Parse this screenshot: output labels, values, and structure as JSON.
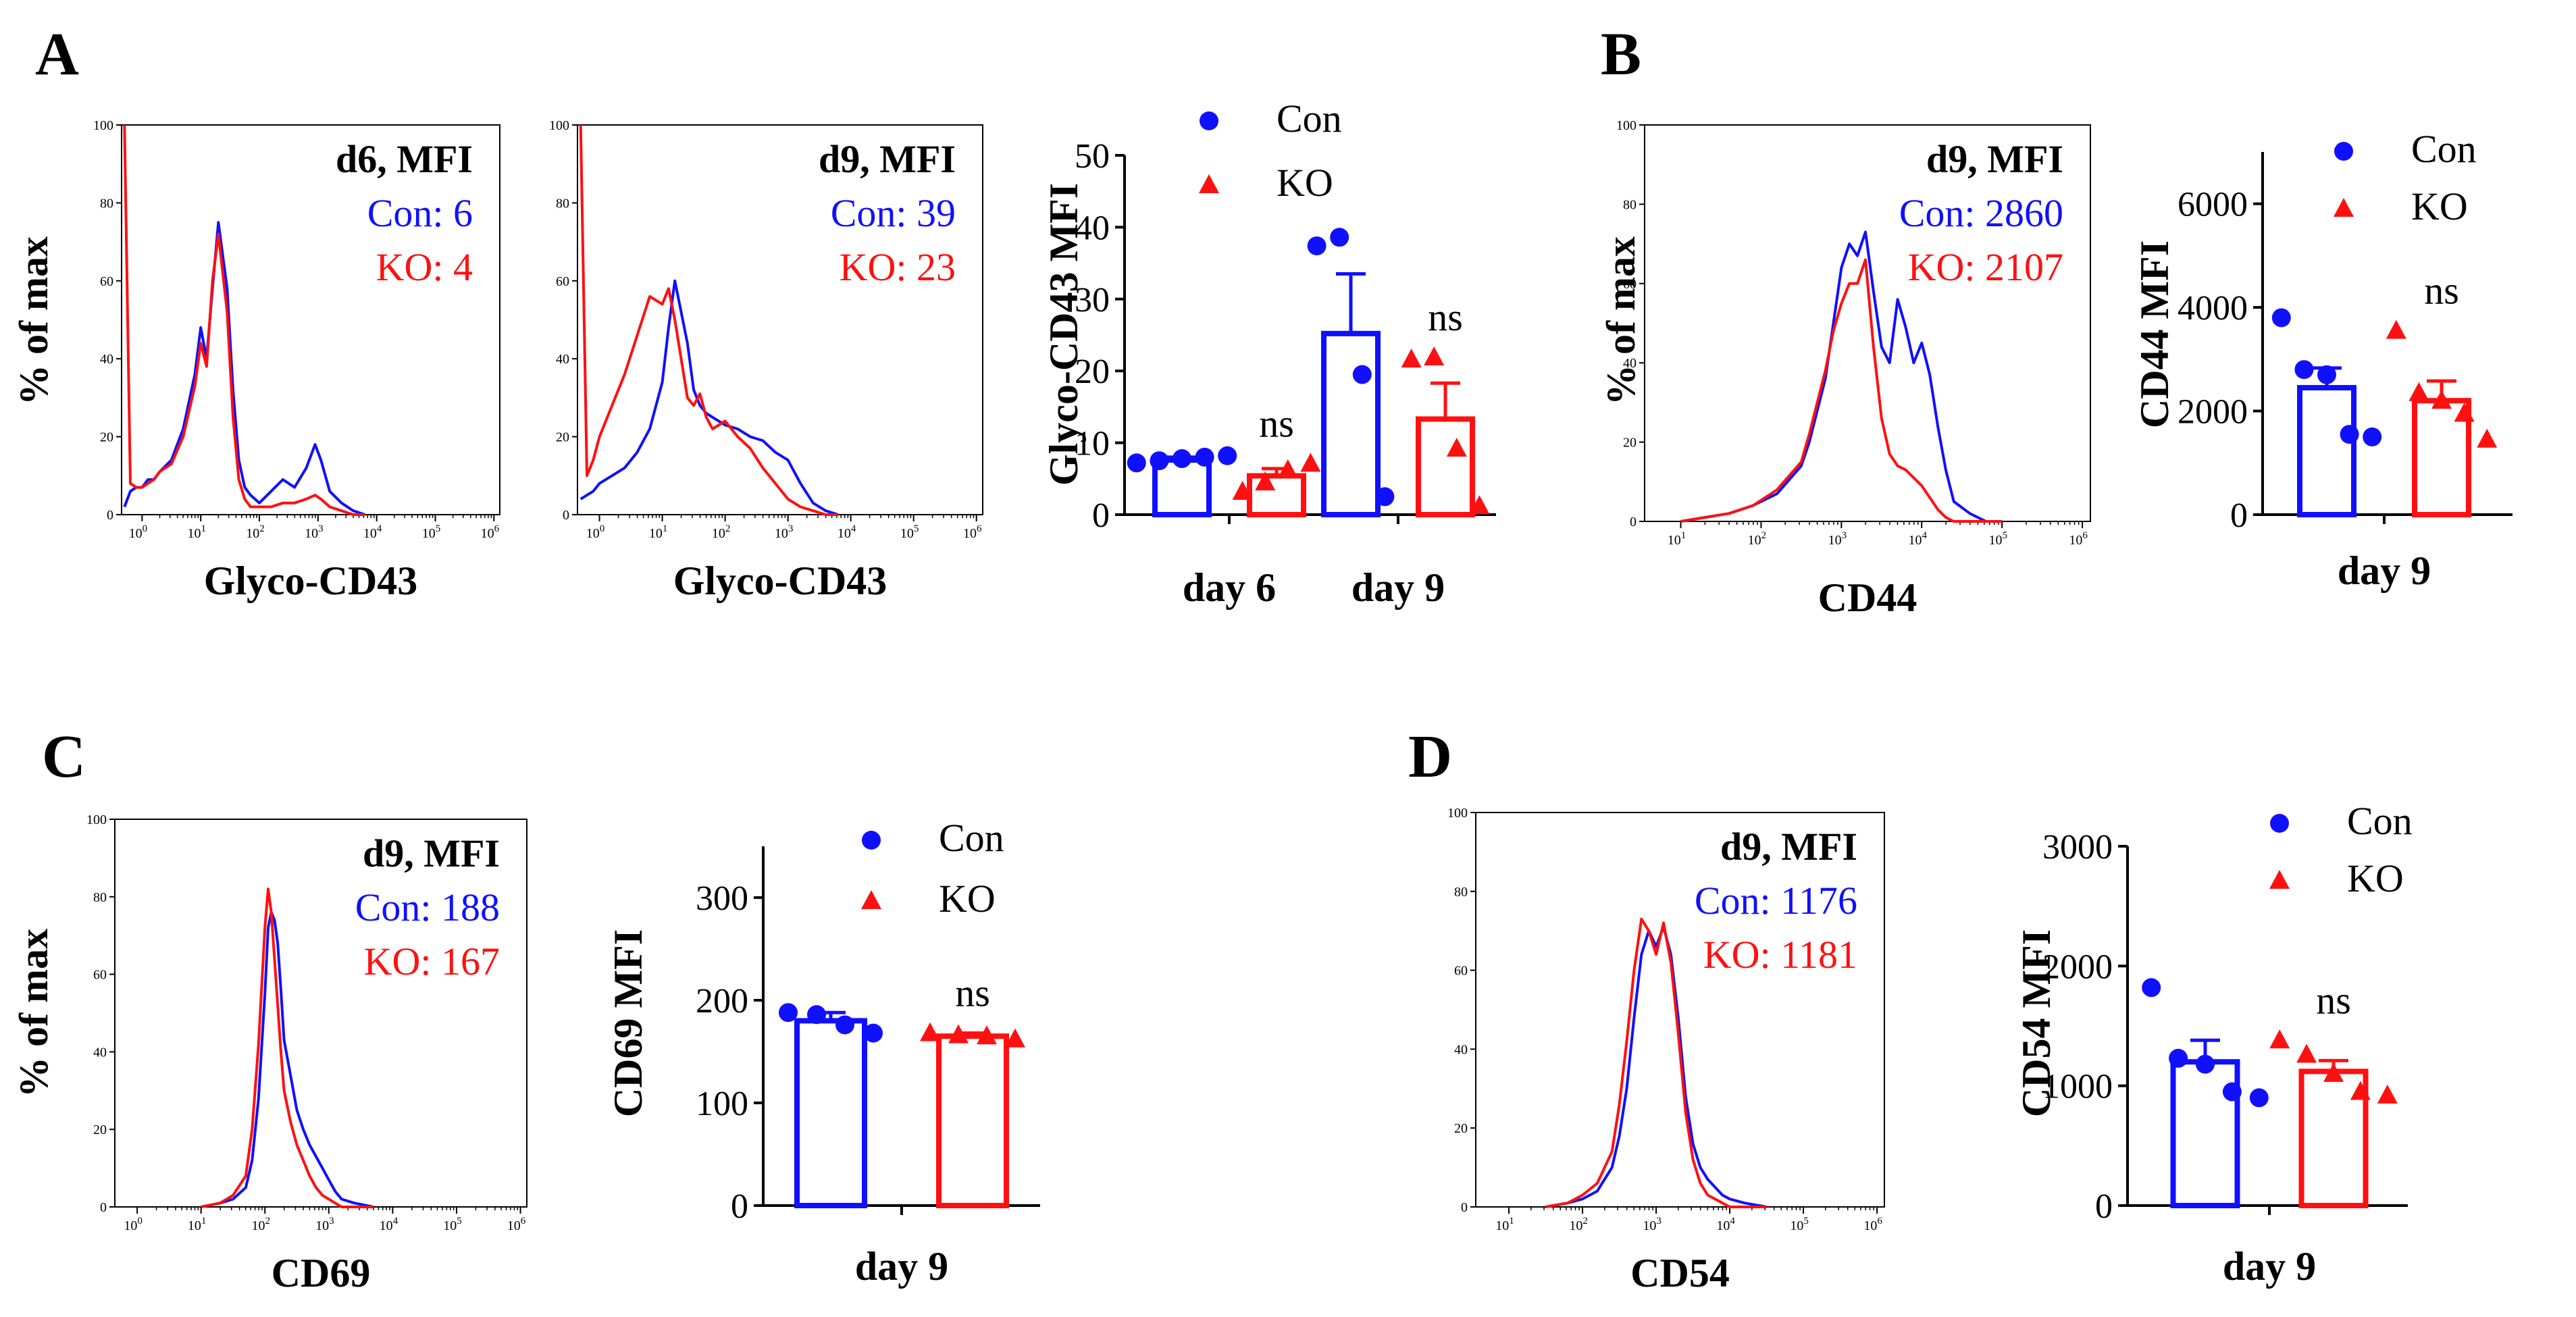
{
  "colors": {
    "con": "#1010ff",
    "ko": "#ff1010",
    "axis": "#000000"
  },
  "panel_labels": [
    "A",
    "B",
    "C",
    "D"
  ],
  "chart_data": [
    {
      "id": "h1",
      "panel": "A",
      "type": "line",
      "xlabel": "Glyco-CD43",
      "ylabel": "% of max",
      "ylim": [
        0,
        100
      ],
      "yticks": [
        "0",
        "20",
        "40",
        "60",
        "80",
        "100"
      ],
      "xticks_exp": [
        "0",
        "1",
        "2",
        "3",
        "4",
        "5",
        "6"
      ],
      "annot": {
        "header": "d6, MFI",
        "con": "Con: 6",
        "ko": "KO:  4"
      },
      "series": [
        {
          "name": "Con",
          "x": [
            -0.3,
            -0.2,
            -0.1,
            0.0,
            0.1,
            0.2,
            0.3,
            0.5,
            0.7,
            0.9,
            1.0,
            1.1,
            1.2,
            1.3,
            1.45,
            1.55,
            1.65,
            1.75,
            1.85,
            2.0,
            2.2,
            2.4,
            2.6,
            2.8,
            2.95,
            3.05,
            3.2,
            3.4,
            3.6,
            3.8
          ],
          "y": [
            2,
            6,
            7,
            7,
            9,
            9,
            11,
            14,
            22,
            36,
            48,
            40,
            58,
            75,
            58,
            32,
            14,
            7,
            5,
            3,
            6,
            9,
            7,
            12,
            18,
            14,
            6,
            3,
            1,
            0
          ]
        },
        {
          "name": "KO",
          "x": [
            -0.3,
            -0.2,
            -0.1,
            0.0,
            0.1,
            0.2,
            0.3,
            0.5,
            0.7,
            0.9,
            1.0,
            1.1,
            1.2,
            1.3,
            1.45,
            1.55,
            1.65,
            1.75,
            1.85,
            2.0,
            2.2,
            2.4,
            2.6,
            2.8,
            2.95,
            3.05,
            3.2,
            3.4,
            3.6,
            3.8
          ],
          "y": [
            100,
            8,
            7,
            7,
            8,
            9,
            11,
            13,
            20,
            33,
            44,
            38,
            60,
            72,
            52,
            25,
            9,
            4,
            2,
            2,
            2,
            3,
            3,
            4,
            5,
            4,
            2,
            1,
            0,
            0
          ]
        }
      ]
    },
    {
      "id": "h2",
      "panel": "A",
      "type": "line",
      "xlabel": "Glyco-CD43",
      "ylabel": "",
      "ylim": [
        0,
        100
      ],
      "yticks": [
        "0",
        "20",
        "40",
        "60",
        "80",
        "100"
      ],
      "xticks_exp": [
        "0",
        "1",
        "2",
        "3",
        "4",
        "5",
        "6"
      ],
      "annot": {
        "header": "d9, MFI",
        "con": "Con: 39",
        "ko": "KO:  23"
      },
      "series": [
        {
          "name": "Con",
          "x": [
            -0.3,
            -0.2,
            -0.1,
            0.0,
            0.2,
            0.4,
            0.6,
            0.8,
            1.0,
            1.1,
            1.2,
            1.3,
            1.4,
            1.5,
            1.6,
            1.7,
            1.8,
            2.0,
            2.2,
            2.4,
            2.6,
            2.8,
            3.0,
            3.2,
            3.4,
            3.6,
            3.8
          ],
          "y": [
            4,
            5,
            6,
            8,
            10,
            12,
            16,
            22,
            34,
            48,
            60,
            52,
            44,
            32,
            28,
            26,
            25,
            23,
            22,
            20,
            19,
            16,
            14,
            8,
            3,
            1,
            0
          ]
        },
        {
          "name": "KO",
          "x": [
            -0.3,
            -0.2,
            -0.1,
            0.0,
            0.2,
            0.4,
            0.6,
            0.8,
            1.0,
            1.1,
            1.2,
            1.3,
            1.4,
            1.5,
            1.6,
            1.7,
            1.8,
            2.0,
            2.2,
            2.4,
            2.6,
            2.8,
            3.0,
            3.2,
            3.4,
            3.6,
            3.8
          ],
          "y": [
            100,
            10,
            14,
            20,
            28,
            36,
            46,
            56,
            54,
            58,
            50,
            40,
            30,
            28,
            31,
            25,
            22,
            24,
            20,
            17,
            12,
            8,
            4,
            2,
            1,
            0,
            0
          ]
        }
      ]
    },
    {
      "id": "b1",
      "panel": "A",
      "type": "bar",
      "categories": [
        "day 6",
        "day 9"
      ],
      "xlabel": "",
      "ylabel": "Glyco-CD43 MFI",
      "ylim": [
        0,
        50
      ],
      "yticks": [
        "0",
        "10",
        "20",
        "30",
        "40",
        "50"
      ],
      "series": [
        {
          "name": "Con",
          "means": [
            7.6,
            25.2
          ],
          "sem": [
            0.4,
            8.3
          ],
          "points": [
            [
              7.2,
              7.5,
              7.8,
              8.0,
              8.2
            ],
            [
              37.4,
              38.6,
              19.5,
              2.5
            ]
          ]
        },
        {
          "name": "KO",
          "means": [
            5.4,
            13.3
          ],
          "sem": [
            1.0,
            5.0
          ],
          "points": [
            [
              3.2,
              4.5,
              6.2,
              7.1
            ],
            [
              21.6,
              21.9,
              9.2,
              1.2
            ]
          ]
        }
      ],
      "significance": [
        "ns",
        "ns"
      ],
      "legend": [
        "Con",
        "KO"
      ]
    },
    {
      "id": "h3",
      "panel": "B",
      "type": "line",
      "xlabel": "CD44",
      "ylabel": "% of max",
      "ylim": [
        0,
        100
      ],
      "yticks": [
        "0",
        "20",
        "40",
        "60",
        "80",
        "100"
      ],
      "xticks_exp": [
        "1",
        "2",
        "3",
        "4",
        "5",
        "6"
      ],
      "annot": {
        "header": "d9, MFI",
        "con": "Con:  2860",
        "ko": "KO:  2107"
      },
      "series": [
        {
          "name": "Con",
          "x": [
            1.0,
            1.3,
            1.6,
            1.9,
            2.2,
            2.5,
            2.6,
            2.8,
            2.9,
            3.0,
            3.1,
            3.2,
            3.3,
            3.4,
            3.5,
            3.6,
            3.7,
            3.8,
            3.9,
            4.0,
            4.1,
            4.2,
            4.3,
            4.4,
            4.6,
            4.8,
            5.0
          ],
          "y": [
            0,
            1,
            2,
            4,
            7,
            14,
            20,
            36,
            50,
            64,
            70,
            67,
            73,
            58,
            44,
            40,
            56,
            49,
            40,
            45,
            37,
            24,
            13,
            5,
            2,
            0,
            0
          ]
        },
        {
          "name": "KO",
          "x": [
            1.0,
            1.3,
            1.6,
            1.9,
            2.2,
            2.5,
            2.6,
            2.8,
            2.9,
            3.0,
            3.1,
            3.2,
            3.3,
            3.4,
            3.5,
            3.6,
            3.7,
            3.8,
            3.9,
            4.0,
            4.1,
            4.2,
            4.3,
            4.4,
            4.6,
            4.8,
            5.0
          ],
          "y": [
            0,
            1,
            2,
            4,
            8,
            15,
            22,
            38,
            48,
            55,
            60,
            60,
            66,
            44,
            26,
            17,
            14,
            13,
            11,
            9,
            6,
            3,
            1,
            0,
            0,
            0,
            0
          ]
        }
      ]
    },
    {
      "id": "b2",
      "panel": "B",
      "type": "bar",
      "categories": [
        "day 9"
      ],
      "xlabel": "",
      "ylabel": "CD44 MFI",
      "ylim": [
        0,
        7000
      ],
      "yticks": [
        "0",
        "2000",
        "4000",
        "6000"
      ],
      "series": [
        {
          "name": "Con",
          "means": [
            2450
          ],
          "sem": [
            380
          ],
          "points": [
            [
              3800,
              2800,
              2700,
              1550,
              1500
            ]
          ]
        },
        {
          "name": "KO",
          "means": [
            2200
          ],
          "sem": [
            380
          ],
          "points": [
            [
              3550,
              2350,
              2200,
              1950,
              1450
            ]
          ]
        }
      ],
      "significance": [
        "ns"
      ],
      "legend": [
        "Con",
        "KO"
      ]
    },
    {
      "id": "h4",
      "panel": "C",
      "type": "line",
      "xlabel": "CD69",
      "ylabel": "% of max",
      "ylim": [
        0,
        100
      ],
      "yticks": [
        "0",
        "20",
        "40",
        "60",
        "80",
        "100"
      ],
      "xticks_exp": [
        "0",
        "1",
        "2",
        "3",
        "4",
        "5",
        "6"
      ],
      "annot": {
        "header": "d9, MFI",
        "con": "Con:  188",
        "ko": "KO:   167"
      },
      "series": [
        {
          "name": "Con",
          "x": [
            1.0,
            1.3,
            1.5,
            1.7,
            1.8,
            1.9,
            2.0,
            2.05,
            2.1,
            2.15,
            2.2,
            2.25,
            2.3,
            2.4,
            2.5,
            2.6,
            2.7,
            2.8,
            2.9,
            3.0,
            3.1,
            3.2,
            3.4,
            3.7
          ],
          "y": [
            0,
            1,
            2,
            5,
            12,
            28,
            55,
            72,
            76,
            74,
            68,
            56,
            43,
            34,
            25,
            20,
            16,
            13,
            10,
            7,
            4,
            2,
            1,
            0
          ]
        },
        {
          "name": "KO",
          "x": [
            1.0,
            1.3,
            1.5,
            1.7,
            1.8,
            1.9,
            2.0,
            2.05,
            2.1,
            2.15,
            2.2,
            2.25,
            2.3,
            2.4,
            2.5,
            2.6,
            2.7,
            2.8,
            2.9,
            3.0,
            3.1,
            3.2,
            3.4,
            3.7
          ],
          "y": [
            0,
            1,
            3,
            8,
            20,
            42,
            72,
            82,
            76,
            64,
            52,
            40,
            30,
            22,
            16,
            12,
            8,
            5,
            3,
            2,
            1,
            0,
            0,
            0
          ]
        }
      ]
    },
    {
      "id": "b3",
      "panel": "C",
      "type": "bar",
      "categories": [
        "day 9"
      ],
      "xlabel": "",
      "ylabel": "CD69 MFI",
      "ylim": [
        0,
        350
      ],
      "yticks": [
        "0",
        "100",
        "200",
        "300"
      ],
      "series": [
        {
          "name": "Con",
          "means": [
            180
          ],
          "sem": [
            8
          ],
          "points": [
            [
              188,
              186,
              176,
              168
            ]
          ]
        },
        {
          "name": "KO",
          "means": [
            165
          ],
          "sem": [
            3
          ],
          "points": [
            [
              168,
              166,
              165,
              162
            ]
          ]
        }
      ],
      "significance": [
        "ns"
      ],
      "legend": [
        "Con",
        "KO"
      ]
    },
    {
      "id": "h5",
      "panel": "D",
      "type": "line",
      "xlabel": "CD54",
      "ylabel": "",
      "ylim": [
        0,
        100
      ],
      "yticks": [
        "0",
        "20",
        "40",
        "60",
        "80",
        "100"
      ],
      "xticks_exp": [
        "1",
        "2",
        "3",
        "4",
        "5",
        "6"
      ],
      "annot": {
        "header": "d9, MFI",
        "con": "Con: 1176",
        "ko": "KO:  1181"
      },
      "series": [
        {
          "name": "Con",
          "x": [
            1.5,
            1.8,
            2.0,
            2.2,
            2.4,
            2.5,
            2.6,
            2.7,
            2.8,
            2.9,
            3.0,
            3.1,
            3.2,
            3.3,
            3.4,
            3.5,
            3.6,
            3.7,
            3.8,
            3.9,
            4.0,
            4.2,
            4.5
          ],
          "y": [
            0,
            1,
            2,
            4,
            10,
            18,
            30,
            48,
            64,
            70,
            66,
            71,
            64,
            48,
            28,
            16,
            10,
            7,
            5,
            3,
            2,
            1,
            0
          ]
        },
        {
          "name": "KO",
          "x": [
            1.5,
            1.8,
            2.0,
            2.2,
            2.4,
            2.5,
            2.6,
            2.7,
            2.8,
            2.9,
            3.0,
            3.1,
            3.2,
            3.3,
            3.4,
            3.5,
            3.6,
            3.7,
            3.8,
            3.9,
            4.0,
            4.2,
            4.5
          ],
          "y": [
            0,
            1,
            3,
            6,
            14,
            26,
            42,
            60,
            73,
            70,
            64,
            72,
            62,
            44,
            24,
            12,
            6,
            3,
            2,
            1,
            0,
            0,
            0
          ]
        }
      ]
    },
    {
      "id": "b4",
      "panel": "D",
      "type": "bar",
      "categories": [
        "day 9"
      ],
      "xlabel": "",
      "ylabel": "CD54 MFI",
      "ylim": [
        0,
        3000
      ],
      "yticks": [
        "0",
        "1000",
        "2000",
        "3000"
      ],
      "series": [
        {
          "name": "Con",
          "means": [
            1200
          ],
          "sem": [
            180
          ],
          "points": [
            [
              1820,
              1230,
              1180,
              950,
              900
            ]
          ]
        },
        {
          "name": "KO",
          "means": [
            1120
          ],
          "sem": [
            90
          ],
          "points": [
            [
              1380,
              1260,
              1100,
              950,
              920
            ]
          ]
        }
      ],
      "significance": [
        "ns"
      ],
      "legend": [
        "Con",
        "KO"
      ]
    }
  ]
}
